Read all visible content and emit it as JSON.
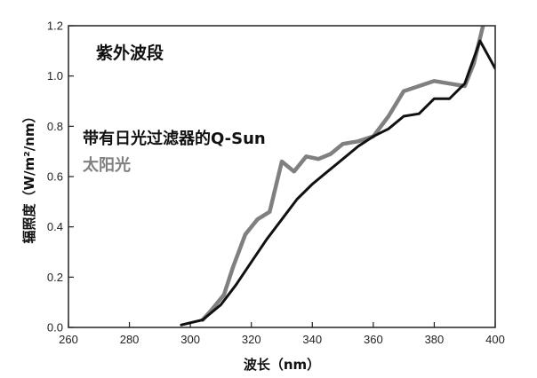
{
  "chart_data": {
    "type": "line",
    "title": "",
    "xlabel": "波长（nm）",
    "ylabel": "辐照度（W/m²/nm）",
    "xlim": [
      260,
      400
    ],
    "ylim": [
      0,
      1.2
    ],
    "x_ticks": [
      "260",
      "280",
      "300",
      "320",
      "340",
      "360",
      "380",
      "400"
    ],
    "y_ticks": [
      "0.0",
      "0.2",
      "0.4",
      "0.6",
      "0.8",
      "1.0",
      "1.2"
    ],
    "grid": false,
    "annotations": [
      {
        "text": "紫外波段"
      }
    ],
    "series": [
      {
        "name": "带有日光过滤器的Q-Sun",
        "color": "#111111",
        "x": [
          297,
          304,
          310,
          315,
          320,
          325,
          330,
          335,
          340,
          345,
          350,
          355,
          360,
          365,
          370,
          375,
          380,
          385,
          390,
          395,
          400
        ],
        "y": [
          0.01,
          0.03,
          0.09,
          0.17,
          0.26,
          0.35,
          0.43,
          0.51,
          0.57,
          0.62,
          0.67,
          0.72,
          0.76,
          0.79,
          0.84,
          0.85,
          0.91,
          0.91,
          0.97,
          1.14,
          1.03
        ]
      },
      {
        "name": "太阳光",
        "color": "#808080",
        "x": [
          304,
          307,
          311,
          314,
          318,
          322,
          326,
          330,
          334,
          338,
          342,
          346,
          350,
          355,
          360,
          365,
          370,
          375,
          380,
          385,
          390,
          393,
          396
        ],
        "y": [
          0.03,
          0.07,
          0.13,
          0.24,
          0.37,
          0.43,
          0.46,
          0.66,
          0.62,
          0.68,
          0.67,
          0.69,
          0.73,
          0.74,
          0.76,
          0.84,
          0.94,
          0.96,
          0.98,
          0.97,
          0.96,
          1.05,
          1.2
        ]
      }
    ]
  }
}
